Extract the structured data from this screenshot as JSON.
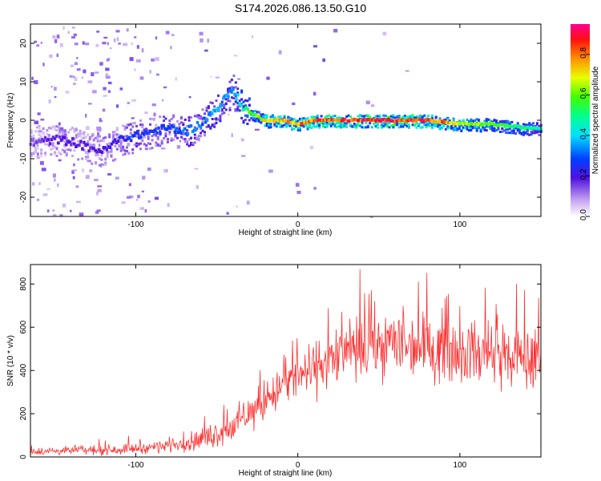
{
  "title": "S174.2026.086.13.50.G10",
  "chart_data": [
    {
      "type": "heatmap",
      "title": "S174.2026.086.13.50.G10",
      "xlabel": "Height of straight line (km)",
      "ylabel": "Frequency (Hz)",
      "xlim": [
        -165,
        150
      ],
      "ylim": [
        -25,
        25
      ],
      "x_ticks": [
        -100,
        0,
        100
      ],
      "y_ticks": [
        -20,
        -10,
        0,
        10,
        20
      ],
      "colorbar": {
        "label": "Normalized spectral amplitude",
        "range": [
          0.0,
          0.95
        ],
        "ticks": [
          0.0,
          0.2,
          0.4,
          0.6,
          0.8
        ],
        "tick_labels": [
          "0.0",
          "0.2",
          "0.4",
          "0.6",
          "0.8"
        ]
      },
      "ridge": {
        "x": [
          -165,
          -150,
          -140,
          -130,
          -120,
          -110,
          -100,
          -90,
          -80,
          -70,
          -60,
          -50,
          -40,
          -35,
          -30,
          -20,
          -10,
          0,
          10,
          20,
          40,
          60,
          80,
          100,
          120,
          140,
          150
        ],
        "freq": [
          -6,
          -5,
          -5.5,
          -7,
          -8,
          -5,
          -4,
          -3,
          -2,
          -3,
          -1,
          3,
          8,
          4,
          2,
          0,
          0,
          -1,
          0,
          0,
          0,
          0,
          0,
          -1,
          -1,
          -2,
          -2
        ],
        "amplitude": [
          0.15,
          0.2,
          0.2,
          0.2,
          0.22,
          0.25,
          0.3,
          0.3,
          0.3,
          0.35,
          0.35,
          0.4,
          0.4,
          0.5,
          0.6,
          0.75,
          0.8,
          0.85,
          0.9,
          0.92,
          0.95,
          0.95,
          0.95,
          0.75,
          0.65,
          0.55,
          0.5
        ]
      }
    },
    {
      "type": "line",
      "xlabel": "Height of straight line (km)",
      "ylabel": "SNR (10 * v/v)",
      "xlim": [
        -165,
        150
      ],
      "ylim": [
        0,
        890
      ],
      "x_ticks": [
        -100,
        0,
        100
      ],
      "y_ticks": [
        0,
        200,
        400,
        600,
        800
      ],
      "series": [
        {
          "name": "SNR",
          "color": "#ff3030",
          "x": [
            -165,
            -150,
            -130,
            -110,
            -90,
            -80,
            -70,
            -60,
            -50,
            -40,
            -30,
            -20,
            -10,
            0,
            10,
            20,
            30,
            40,
            50,
            60,
            70,
            80,
            90,
            100,
            110,
            120,
            130,
            140,
            150
          ],
          "mean": [
            25,
            28,
            30,
            35,
            45,
            55,
            65,
            80,
            110,
            140,
            200,
            260,
            330,
            370,
            410,
            450,
            480,
            500,
            520,
            530,
            520,
            510,
            500,
            490,
            480,
            470,
            460,
            450,
            440
          ],
          "spread": [
            20,
            20,
            22,
            25,
            30,
            35,
            40,
            55,
            70,
            80,
            90,
            100,
            110,
            120,
            130,
            140,
            150,
            160,
            170,
            170,
            170,
            170,
            170,
            160,
            160,
            160,
            160,
            160,
            160
          ]
        }
      ]
    }
  ]
}
